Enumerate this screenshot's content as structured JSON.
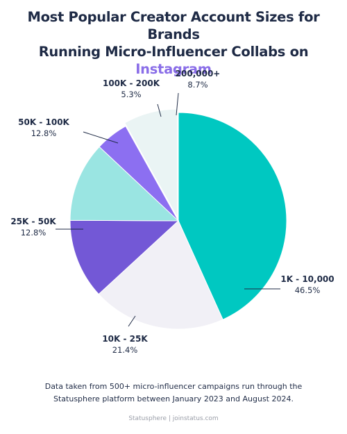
{
  "title": {
    "line1": "Most Popular Creator Account Sizes for Brands",
    "line2_prefix": "Running Micro-Influencer Collabs on ",
    "line2_accent": "Instagram"
  },
  "colors": {
    "accent": "#8a6ee8",
    "text": "#1e2a45"
  },
  "chart_data": {
    "type": "pie",
    "title": "Most Popular Creator Account Sizes for Brands Running Micro-Influencer Collabs on Instagram",
    "slices": [
      {
        "label": "1K - 10,000",
        "value": 46.5,
        "display": "46.5%",
        "color": "#00c8c1"
      },
      {
        "label": "10K - 25K",
        "value": 21.4,
        "display": "21.4%",
        "color": "#f1f0f6"
      },
      {
        "label": "25K - 50K",
        "value": 12.8,
        "display": "12.8%",
        "color": "#7358d6"
      },
      {
        "label": "50K - 100K",
        "value": 12.8,
        "display": "12.8%",
        "color": "#9ae5e2"
      },
      {
        "label": "100K - 200K",
        "value": 5.3,
        "display": "5.3%",
        "color": "#8c6ff1"
      },
      {
        "label": "200,000+",
        "value": 8.7,
        "display": "8.7%",
        "color": "#eaf4f4"
      }
    ]
  },
  "footnote": {
    "line1": "Data taken from 500+ micro-influencer campaigns run through the",
    "line2": "Statusphere platform between January 2023 and August 2024."
  },
  "source": "Statusphere | joinstatus.com"
}
